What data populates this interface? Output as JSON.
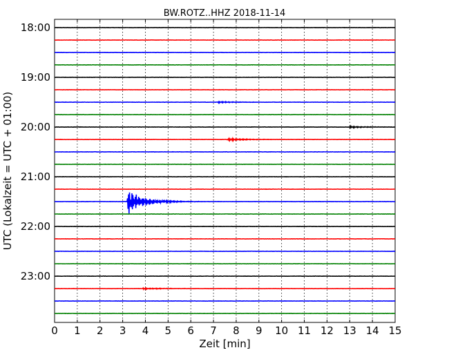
{
  "chart_data": {
    "type": "line",
    "title": "BW.ROTZ..HHZ 2018-11-14",
    "xlabel": "Zeit  [min]",
    "ylabel": "UTC (Lokalzeit = UTC + 01:00)",
    "xlim": [
      0,
      15
    ],
    "x_ticks": [
      "0",
      "1",
      "2",
      "3",
      "4",
      "5",
      "6",
      "7",
      "8",
      "9",
      "10",
      "11",
      "12",
      "13",
      "14",
      "15"
    ],
    "y_ticks": [
      "18:00",
      "19:00",
      "20:00",
      "21:00",
      "22:00",
      "23:00"
    ],
    "grid": "vertical dotted",
    "colors": {
      "black": "#000000",
      "red": "#ff0000",
      "blue": "#0000ff",
      "green": "#008000"
    },
    "series": [
      {
        "start": "18:00",
        "color": "black"
      },
      {
        "start": "18:15",
        "color": "red"
      },
      {
        "start": "18:30",
        "color": "blue"
      },
      {
        "start": "18:45",
        "color": "green"
      },
      {
        "start": "19:00",
        "color": "black"
      },
      {
        "start": "19:15",
        "color": "red"
      },
      {
        "start": "19:30",
        "color": "blue",
        "event_min": 7.2,
        "event_peak": 0.1
      },
      {
        "start": "19:45",
        "color": "green"
      },
      {
        "start": "20:00",
        "color": "black",
        "event_min": 13.0,
        "event_peak": 0.12
      },
      {
        "start": "20:15",
        "color": "red",
        "event_min": 7.6,
        "event_peak": 0.2
      },
      {
        "start": "20:30",
        "color": "blue"
      },
      {
        "start": "20:45",
        "color": "green"
      },
      {
        "start": "21:00",
        "color": "black"
      },
      {
        "start": "21:15",
        "color": "red"
      },
      {
        "start": "21:30",
        "color": "blue",
        "event_min": 3.2,
        "event_peak": 1.8
      },
      {
        "start": "21:45",
        "color": "green"
      },
      {
        "start": "22:00",
        "color": "black"
      },
      {
        "start": "22:15",
        "color": "red"
      },
      {
        "start": "22:30",
        "color": "blue"
      },
      {
        "start": "22:45",
        "color": "green"
      },
      {
        "start": "23:00",
        "color": "black"
      },
      {
        "start": "23:15",
        "color": "red",
        "event_min": 3.9,
        "event_peak": 0.12
      },
      {
        "start": "23:30",
        "color": "blue"
      },
      {
        "start": "23:45",
        "color": "green"
      }
    ]
  }
}
